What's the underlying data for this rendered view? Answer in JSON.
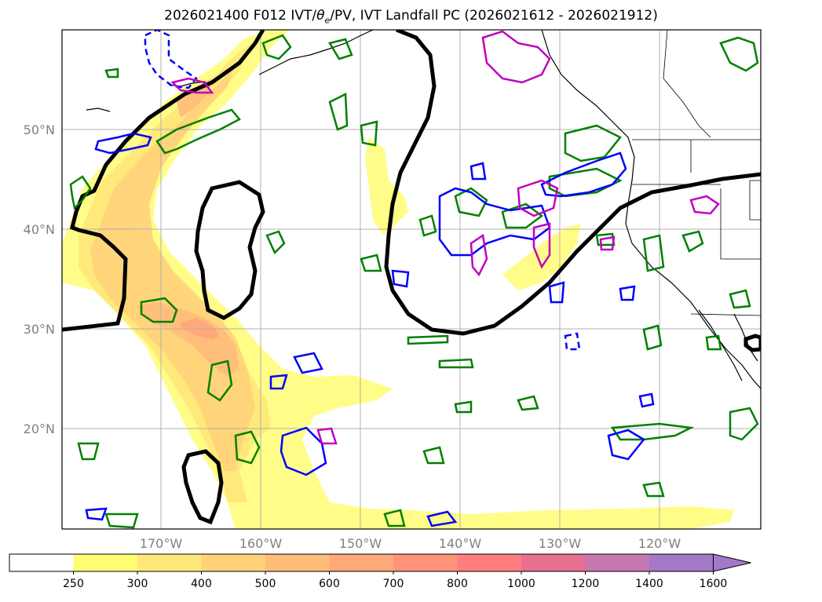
{
  "figure": {
    "title_pre": "2026021400 F012 IVT/",
    "title_sym": "θ",
    "title_sub": "e",
    "title_post": "/PV, IVT Landfall PC (2026021612 - 2026021912)"
  },
  "map": {
    "lat_labels": [
      "50°N",
      "40°N",
      "30°N",
      "20°N"
    ],
    "lon_labels": [
      "170°W",
      "160°W",
      "150°W",
      "140°W",
      "130°W",
      "120°W"
    ],
    "contour_colors": {
      "pc": "#000000",
      "theta_e": "#008000",
      "pv_pos": "#0000ff",
      "pv_neg": "#c000c0"
    }
  },
  "colorbar": {
    "levels": [
      "250",
      "300",
      "400",
      "500",
      "600",
      "700",
      "800",
      "1000",
      "1200",
      "1400",
      "1600"
    ],
    "colors": [
      "#ffffff",
      "#fffd73",
      "#ffe77a",
      "#ffd27a",
      "#ffbd7a",
      "#ffa87a",
      "#ff937a",
      "#ff7e7e",
      "#e87090",
      "#c878b0",
      "#a478c8"
    ],
    "extend": "max"
  }
}
